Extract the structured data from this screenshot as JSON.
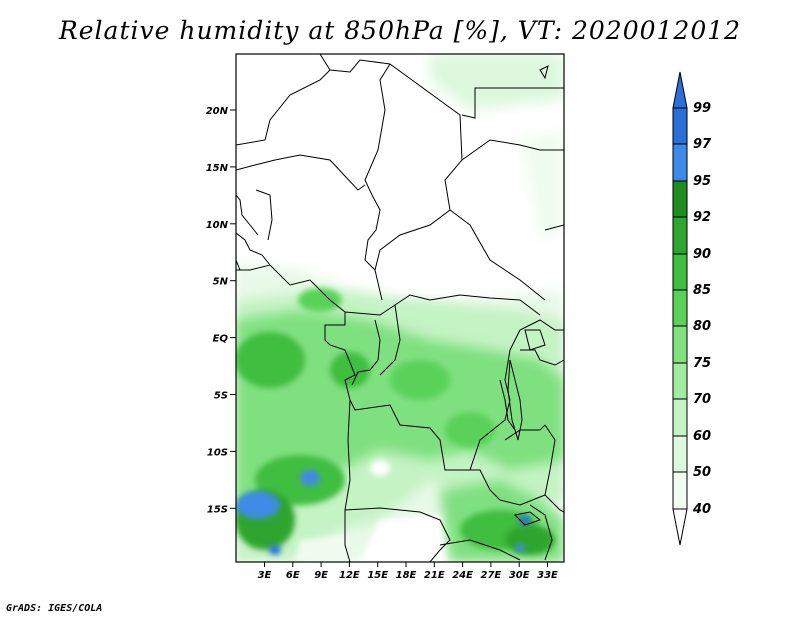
{
  "title": "Relative humidity at 850hPa [%], VT: 2020012012",
  "credit": "GrADS: IGES/COLA",
  "map": {
    "lat_ticks": [
      "20N",
      "15N",
      "10N",
      "5N",
      "EQ",
      "5S",
      "10S",
      "15S"
    ],
    "lon_ticks": [
      "3E",
      "6E",
      "9E",
      "12E",
      "15E",
      "18E",
      "21E",
      "24E",
      "27E",
      "30E",
      "33E"
    ]
  },
  "colorbar": {
    "levels": [
      "99",
      "97",
      "95",
      "92",
      "90",
      "85",
      "80",
      "75",
      "70",
      "60",
      "50",
      "40"
    ],
    "colors": [
      "#2a6ed8",
      "#3f8ae8",
      "#1e8c1e",
      "#2ea52e",
      "#3fbe3f",
      "#5ad25a",
      "#7fe07f",
      "#a3eba3",
      "#c4f3c4",
      "#ddf8dd",
      "#f0fcf0",
      "#ffffff"
    ]
  }
}
